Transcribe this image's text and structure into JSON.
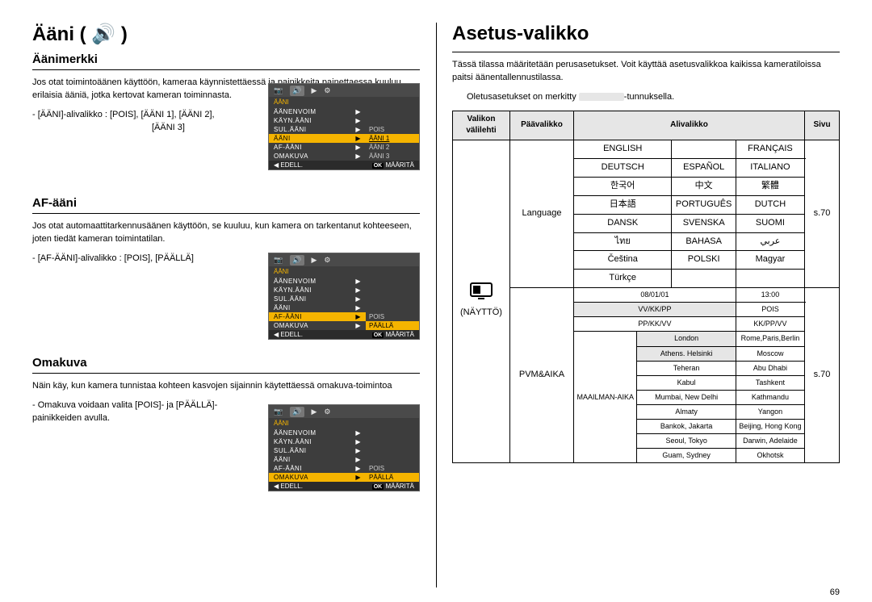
{
  "left": {
    "heading": "Ääni ( 🔊 )",
    "sections": [
      {
        "title": "Äänimerkki",
        "text": "Jos otat toimintoäänen käyttöön, kameraa käynnistettäessä ja painikkeita painettaessa kuuluu erilaisia ääniä, jotka kertovat kameran toiminnasta.",
        "bullet": "[ÄÄNI]-alivalikko :  [POIS], [ÄÄNI 1], [ÄÄNI 2],",
        "bullet_sub": "[ÄÄNI 3]",
        "lcd": {
          "bar_icons": [
            "📷",
            "🔊",
            "▶",
            "⚙"
          ],
          "title": "ÄÄNI",
          "rows": [
            {
              "lbl": "ÄÄNENVOIM",
              "val": "",
              "active": false
            },
            {
              "lbl": "KÄYN.ÄÄNI",
              "val": "",
              "active": false
            },
            {
              "lbl": "SUL.ÄÄNI",
              "val": "POIS",
              "active": false
            },
            {
              "lbl": "ÄÄNI",
              "val": "ÄÄNI 1",
              "active": true,
              "sel": true
            },
            {
              "lbl": "AF-ÄÄNI",
              "val": "ÄÄNI 2",
              "active": false
            },
            {
              "lbl": "OMAKUVA",
              "val": "ÄÄNI 3",
              "active": false
            }
          ],
          "foot_left": "◀ EDELL.",
          "foot_right": "OK MÄÄRITÄ"
        }
      },
      {
        "title": "AF-ääni",
        "text": "Jos otat automaattitarkennusäänen käyttöön, se kuuluu, kun kamera on tarkentanut kohteeseen, joten tiedät kameran toimintatilan.",
        "bullet": "[AF-ÄÄNI]-alivalikko :  [POIS], [PÄÄLLÄ]",
        "lcd": {
          "bar_icons": [
            "📷",
            "🔊",
            "▶",
            "⚙"
          ],
          "title": "ÄÄNI",
          "rows": [
            {
              "lbl": "ÄÄNENVOIM",
              "val": ""
            },
            {
              "lbl": "KÄYN.ÄÄNI",
              "val": ""
            },
            {
              "lbl": "SUL.ÄÄNI",
              "val": ""
            },
            {
              "lbl": "ÄÄNI",
              "val": ""
            },
            {
              "lbl": "AF-ÄÄNI",
              "val": "POIS",
              "active": true
            },
            {
              "lbl": "OMAKUVA",
              "val": "PÄÄLLÄ",
              "sel": true
            }
          ],
          "foot_left": "◀ EDELL.",
          "foot_right": "OK MÄÄRITÄ"
        }
      },
      {
        "title": "Omakuva",
        "text": "Näin käy, kun kamera tunnistaa kohteen kasvojen sijainnin käytettäessä omakuva-toimintoa",
        "bullet": "Omakuva voidaan valita [POIS]- ja [PÄÄLLÄ]-painikkeiden avulla.",
        "lcd": {
          "bar_icons": [
            "📷",
            "🔊",
            "▶",
            "⚙"
          ],
          "title": "ÄÄNI",
          "rows": [
            {
              "lbl": "ÄÄNENVOIM",
              "val": ""
            },
            {
              "lbl": "KÄYN.ÄÄNI",
              "val": ""
            },
            {
              "lbl": "SUL.ÄÄNI",
              "val": ""
            },
            {
              "lbl": "ÄÄNI",
              "val": ""
            },
            {
              "lbl": "AF-ÄÄNI",
              "val": "POIS"
            },
            {
              "lbl": "OMAKUVA",
              "val": "PÄÄLLÄ",
              "active": true,
              "sel": true
            }
          ],
          "foot_left": "◀ EDELL.",
          "foot_right": "OK MÄÄRITÄ"
        }
      }
    ]
  },
  "right": {
    "heading": "Asetus-valikko",
    "intro": "Tässä tilassa määritetään perusasetukset. Voit käyttää asetusvalikkoa kaikissa kameratiloissa paitsi äänentallennustilassa.",
    "note_prefix": "Oletusasetukset on merkitty ",
    "note_suffix": "-tunnuksella.",
    "th": [
      "Valikon välilehti",
      "Päävalikko",
      "Alivalikko",
      "Sivu"
    ],
    "tab_icon_label": "(NÄYTTÖ)",
    "language_label": "Language",
    "language_page": "s.70",
    "lang_rows": [
      [
        "ENGLISH",
        "",
        "FRANÇAIS"
      ],
      [
        "DEUTSCH",
        "ESPAÑOL",
        "ITALIANO"
      ],
      [
        "한국어",
        "中文",
        "繁體"
      ],
      [
        "日本語",
        "PORTUGUÊS",
        "DUTCH"
      ],
      [
        "DANSK",
        "SVENSKA",
        "SUOMI"
      ],
      [
        "ไทย",
        "BAHASA",
        "عربي"
      ],
      [
        "Čeština",
        "POLSKI",
        "Magyar"
      ],
      [
        "Türkçe",
        "",
        ""
      ]
    ],
    "pvmaika_label": "PVM&AIKA",
    "pvmaika_page": "s.70",
    "date_rows": [
      [
        "08/01/01",
        "13:00"
      ],
      [
        "VV/KK/PP",
        "POIS"
      ],
      [
        "PP/KK/VV",
        "KK/PP/VV"
      ]
    ],
    "world_label": "MAAILMAN-AIKA",
    "city_rows": [
      [
        "London",
        "Rome,Paris,Berlin"
      ],
      [
        "Athens. Helsinki",
        "Moscow"
      ],
      [
        "Teheran",
        "Abu Dhabi"
      ],
      [
        "Kabul",
        "Tashkent"
      ],
      [
        "Mumbai, New Delhi",
        "Kathmandu"
      ],
      [
        "Almaty",
        "Yangon"
      ],
      [
        "Bankok, Jakarta",
        "Beijing, Hong Kong"
      ],
      [
        "Seoul, Tokyo",
        "Darwin, Adelaide"
      ],
      [
        "Guam, Sydney",
        "Okhotsk"
      ]
    ]
  },
  "page_number": "69"
}
